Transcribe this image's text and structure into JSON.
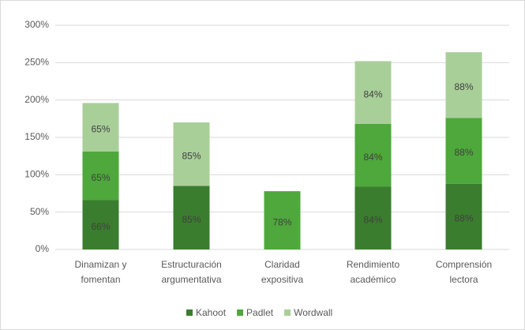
{
  "chart_data": {
    "type": "stacked_bar",
    "categories": [
      [
        "Dinamizan y",
        "fomentan"
      ],
      [
        "Estructuración",
        "argumentativa"
      ],
      [
        "Claridad",
        "expositiva"
      ],
      [
        "Rendimiento",
        "académico"
      ],
      [
        "Comprensión",
        "lectora"
      ]
    ],
    "series": [
      {
        "name": "Kahoot",
        "color": "#3b7d2e",
        "values": [
          66,
          85,
          null,
          84,
          88
        ],
        "value_labels": [
          "66%",
          "85%",
          null,
          "84%",
          "88%"
        ]
      },
      {
        "name": "Padlet",
        "color": "#4ea83b",
        "values": [
          65,
          null,
          78,
          84,
          88
        ],
        "value_labels": [
          "65%",
          null,
          "78%",
          "84%",
          "88%"
        ]
      },
      {
        "name": "Wordwall",
        "color": "#a9cf99",
        "values": [
          65,
          85,
          null,
          84,
          88
        ],
        "value_labels": [
          "65%",
          "85%",
          null,
          "84%",
          "88%"
        ]
      }
    ],
    "ylim": [
      0,
      300
    ],
    "yticks": [
      {
        "value": 0,
        "label": "0%"
      },
      {
        "value": 50,
        "label": "50%"
      },
      {
        "value": 100,
        "label": "100%"
      },
      {
        "value": 150,
        "label": "150%"
      },
      {
        "value": 200,
        "label": "200%"
      },
      {
        "value": 250,
        "label": "250%"
      },
      {
        "value": 300,
        "label": "300%"
      }
    ],
    "grid": true,
    "legend": "bottom"
  }
}
